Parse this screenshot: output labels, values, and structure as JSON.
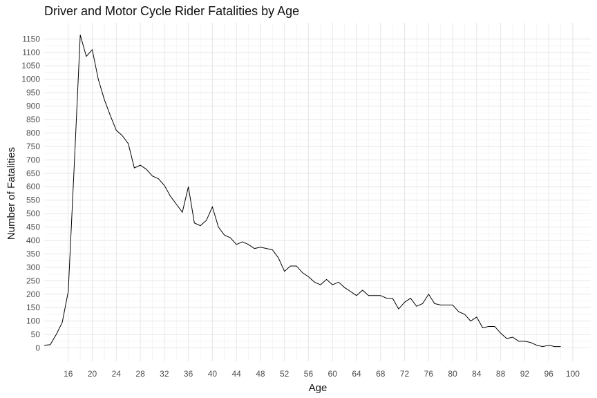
{
  "chart_data": {
    "type": "line",
    "title": "Driver and Motor Cycle Rider Fatalities by Age",
    "xlabel": "Age",
    "ylabel": "Number of Fatalities",
    "xlim": [
      12,
      103
    ],
    "ylim": [
      -50,
      1210
    ],
    "xticks": [
      16,
      20,
      24,
      28,
      32,
      36,
      40,
      44,
      48,
      52,
      56,
      60,
      64,
      68,
      72,
      76,
      80,
      84,
      88,
      92,
      96,
      100
    ],
    "yticks": [
      0,
      50,
      100,
      150,
      200,
      250,
      300,
      350,
      400,
      450,
      500,
      550,
      600,
      650,
      700,
      750,
      800,
      850,
      900,
      950,
      1000,
      1050,
      1100,
      1150
    ],
    "grid": true,
    "legend": "none",
    "x": [
      12,
      13,
      14,
      15,
      16,
      17,
      18,
      19,
      20,
      21,
      22,
      23,
      24,
      25,
      26,
      27,
      28,
      29,
      30,
      31,
      32,
      33,
      34,
      35,
      36,
      37,
      38,
      39,
      40,
      41,
      42,
      43,
      44,
      45,
      46,
      47,
      48,
      49,
      50,
      51,
      52,
      53,
      54,
      55,
      56,
      57,
      58,
      59,
      60,
      61,
      62,
      63,
      64,
      65,
      66,
      67,
      68,
      69,
      70,
      71,
      72,
      73,
      74,
      75,
      76,
      77,
      78,
      79,
      80,
      81,
      82,
      83,
      84,
      85,
      86,
      87,
      88,
      89,
      90,
      91,
      92,
      93,
      94,
      95,
      96,
      97,
      98
    ],
    "values": [
      10,
      12,
      50,
      95,
      210,
      680,
      1165,
      1085,
      1110,
      1000,
      925,
      865,
      810,
      790,
      760,
      670,
      680,
      665,
      640,
      630,
      605,
      565,
      535,
      505,
      600,
      465,
      455,
      475,
      525,
      450,
      420,
      410,
      385,
      395,
      385,
      370,
      375,
      370,
      365,
      335,
      285,
      305,
      305,
      280,
      265,
      245,
      235,
      255,
      235,
      245,
      225,
      210,
      195,
      215,
      195,
      195,
      195,
      185,
      185,
      145,
      170,
      185,
      155,
      165,
      200,
      165,
      160,
      160,
      160,
      135,
      125,
      100,
      115,
      75,
      80,
      80,
      55,
      35,
      40,
      25,
      25,
      20,
      10,
      5,
      10,
      5,
      5
    ]
  }
}
